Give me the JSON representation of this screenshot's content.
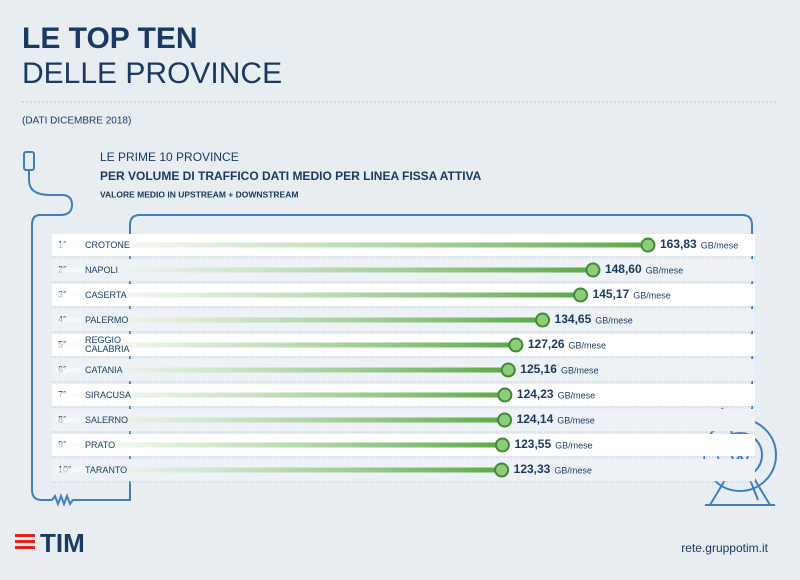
{
  "header": {
    "title_line1": "LE TOP TEN",
    "title_line2": "DELLE PROVINCE",
    "note": "(DATI DICEMBRE 2018)"
  },
  "chart_data": {
    "type": "bar",
    "orientation": "horizontal",
    "subtitle": "LE PRIME 10 PROVINCE",
    "title": "PER VOLUME DI TRAFFICO DATI MEDIO PER LINEA FISSA ATTIVA",
    "caption": "VALORE MEDIO IN UPSTREAM + DOWNSTREAM",
    "ranks": [
      "1°",
      "2°",
      "3°",
      "4°",
      "5°",
      "6°",
      "7°",
      "8°",
      "9°",
      "10°"
    ],
    "categories": [
      "CROTONE",
      "NAPOLI",
      "CASERTA",
      "PALERMO",
      "REGGIO CALABRIA",
      "CATANIA",
      "SIRACUSA",
      "SALERNO",
      "PRATO",
      "TARANTO"
    ],
    "values": [
      163.83,
      148.6,
      145.17,
      134.65,
      127.26,
      125.16,
      124.23,
      124.14,
      123.55,
      123.33
    ],
    "value_labels": [
      "163,83",
      "148,60",
      "145,17",
      "134,65",
      "127,26",
      "125,16",
      "124,23",
      "124,14",
      "123,55",
      "123,33"
    ],
    "unit": "GB/mese",
    "color": "#5aa845"
  },
  "footer": {
    "logo": "TIM",
    "url": "rete.gruppotim.it"
  }
}
